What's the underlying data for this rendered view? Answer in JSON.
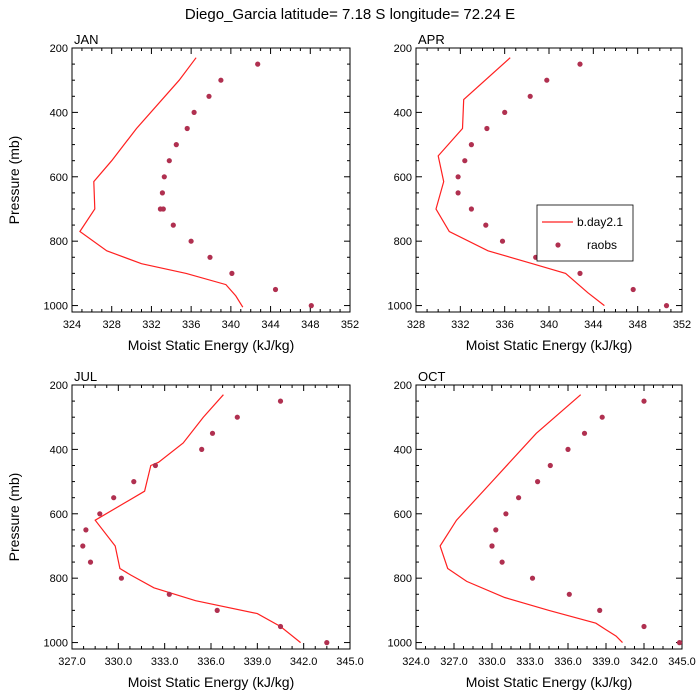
{
  "title": "Diego_Garcia  latitude= 7.18 S longitude= 72.24 E",
  "colors": {
    "model": "#ff2020",
    "obs": "#b03050",
    "axis": "#000000"
  },
  "legend": {
    "model_label": "b.day2.1",
    "obs_label": "raobs"
  },
  "chart_data": [
    {
      "type": "line",
      "panel": "JAN",
      "title": "JAN",
      "xlabel": "Moist Static Energy (kJ/kg)",
      "ylabel": "Pressure (mb)",
      "xlim": [
        324,
        352
      ],
      "ylim": [
        1020,
        200
      ],
      "xticks": [
        324,
        328,
        332,
        336,
        340,
        344,
        348,
        352
      ],
      "xtick_labels": [
        "324",
        "328",
        "332",
        "336",
        "340",
        "344",
        "348",
        "352"
      ],
      "yticks": [
        200,
        400,
        600,
        800,
        1000
      ],
      "ytick_labels": [
        "200",
        "400",
        "600",
        "800",
        "1000"
      ],
      "series": [
        {
          "name": "b.day2.1",
          "style": "line",
          "x": [
            336.5,
            334.8,
            330.5,
            328.0,
            326.2,
            326.3,
            324.8,
            327.5,
            331.0,
            335.5,
            339.5,
            340.5,
            341.2
          ],
          "y": [
            230,
            300,
            450,
            550,
            615,
            700,
            770,
            830,
            870,
            900,
            935,
            970,
            1005
          ]
        },
        {
          "name": "raobs",
          "style": "markers",
          "x": [
            342.7,
            339.0,
            337.8,
            336.3,
            335.6,
            334.5,
            333.8,
            333.3,
            333.1,
            333.2,
            332.9,
            334.2,
            336.0,
            337.9,
            340.1,
            344.5,
            348.1
          ],
          "y": [
            250,
            300,
            350,
            400,
            450,
            500,
            550,
            600,
            650,
            700,
            700,
            750,
            800,
            850,
            900,
            950,
            1000
          ]
        }
      ]
    },
    {
      "type": "line",
      "panel": "APR",
      "title": "APR",
      "xlabel": "Moist Static Energy (kJ/kg)",
      "ylabel": "",
      "xlim": [
        328,
        352
      ],
      "ylim": [
        1020,
        200
      ],
      "xticks": [
        328,
        332,
        336,
        340,
        344,
        348,
        352
      ],
      "xtick_labels": [
        "328",
        "332",
        "336",
        "340",
        "344",
        "348",
        "352"
      ],
      "yticks": [
        200,
        400,
        600,
        800,
        1000
      ],
      "ytick_labels": [
        "200",
        "400",
        "600",
        "800",
        "1000"
      ],
      "series": [
        {
          "name": "b.day2.1",
          "style": "line",
          "x": [
            336.5,
            332.3,
            332.2,
            330.0,
            330.5,
            329.8,
            331.0,
            334.5,
            338.5,
            341.5,
            343.5,
            345.0
          ],
          "y": [
            230,
            360,
            450,
            535,
            615,
            700,
            770,
            830,
            870,
            900,
            960,
            1000
          ]
        },
        {
          "name": "raobs",
          "style": "markers",
          "x": [
            342.8,
            339.8,
            338.3,
            336.0,
            334.4,
            333.0,
            332.4,
            331.8,
            331.8,
            333.0,
            334.3,
            335.8,
            338.8,
            342.8,
            347.6,
            350.6
          ],
          "y": [
            250,
            300,
            350,
            400,
            450,
            500,
            550,
            600,
            650,
            700,
            750,
            800,
            850,
            900,
            950,
            1000
          ]
        }
      ]
    },
    {
      "type": "line",
      "panel": "JUL",
      "title": "JUL",
      "xlabel": "Moist Static Energy (kJ/kg)",
      "ylabel": "Pressure (mb)",
      "xlim": [
        327.0,
        345.0
      ],
      "ylim": [
        1020,
        200
      ],
      "xticks": [
        327.0,
        330.0,
        333.0,
        336.0,
        339.0,
        342.0,
        345.0
      ],
      "xtick_labels": [
        "327.0",
        "330.0",
        "333.0",
        "336.0",
        "339.0",
        "342.0",
        "345.0"
      ],
      "yticks": [
        200,
        400,
        600,
        800,
        1000
      ],
      "ytick_labels": [
        "200",
        "400",
        "600",
        "800",
        "1000"
      ],
      "series": [
        {
          "name": "b.day2.1",
          "style": "line",
          "x": [
            336.8,
            335.5,
            334.2,
            332.6,
            332.1,
            331.7,
            328.5,
            329.8,
            330.1,
            330.8,
            332.3,
            335.0,
            339.0,
            340.5,
            341.8
          ],
          "y": [
            230,
            300,
            380,
            440,
            450,
            530,
            620,
            700,
            770,
            790,
            830,
            870,
            910,
            950,
            1000
          ]
        },
        {
          "name": "raobs",
          "style": "markers",
          "x": [
            340.5,
            337.7,
            336.1,
            335.4,
            332.4,
            331.0,
            329.7,
            328.8,
            327.9,
            327.7,
            328.2,
            330.2,
            333.3,
            336.4,
            340.5,
            343.5
          ],
          "y": [
            250,
            300,
            350,
            400,
            450,
            500,
            550,
            600,
            650,
            700,
            750,
            800,
            850,
            900,
            950,
            1000
          ]
        }
      ]
    },
    {
      "type": "line",
      "panel": "OCT",
      "title": "OCT",
      "xlabel": "Moist Static Energy (kJ/kg)",
      "ylabel": "",
      "xlim": [
        324.0,
        345.0
      ],
      "ylim": [
        1020,
        200
      ],
      "xticks": [
        324.0,
        327.0,
        330.0,
        333.0,
        336.0,
        339.0,
        342.0,
        345.0
      ],
      "xtick_labels": [
        "324.0",
        "327.0",
        "330.0",
        "333.0",
        "336.0",
        "339.0",
        "342.0",
        "345.0"
      ],
      "yticks": [
        200,
        400,
        600,
        800,
        1000
      ],
      "ytick_labels": [
        "200",
        "400",
        "600",
        "800",
        "1000"
      ],
      "series": [
        {
          "name": "b.day2.1",
          "style": "line",
          "x": [
            337.0,
            333.5,
            330.0,
            327.2,
            325.9,
            326.5,
            328.0,
            331.0,
            334.5,
            338.2,
            339.0,
            339.8,
            340.3
          ],
          "y": [
            230,
            350,
            500,
            620,
            700,
            770,
            810,
            860,
            900,
            940,
            960,
            980,
            1000
          ]
        },
        {
          "name": "raobs",
          "style": "markers",
          "x": [
            342.0,
            338.7,
            337.3,
            336.0,
            334.6,
            333.6,
            332.1,
            331.1,
            330.3,
            330.0,
            330.0,
            330.8,
            333.2,
            336.1,
            338.5,
            342.0,
            344.8
          ],
          "y": [
            250,
            300,
            350,
            400,
            450,
            500,
            550,
            600,
            650,
            700,
            700,
            750,
            800,
            850,
            900,
            950,
            1000
          ]
        }
      ]
    }
  ]
}
